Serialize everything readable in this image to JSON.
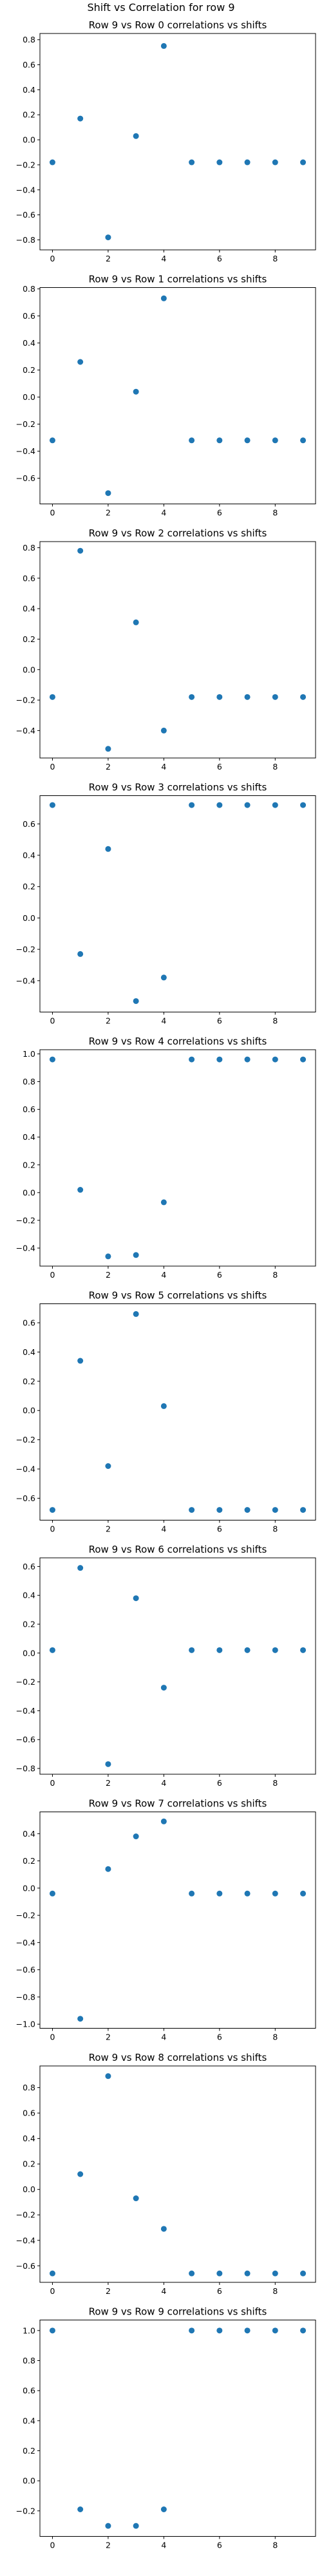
{
  "figure": {
    "suptitle": "Shift vs Correlation for row 9"
  },
  "chart_data": [
    {
      "type": "scatter",
      "title": "Row 9 vs Row 0 correlations vs shifts",
      "x": [
        0,
        1,
        2,
        3,
        4,
        5,
        6,
        7,
        8,
        9
      ],
      "y": [
        -0.18,
        0.17,
        -0.78,
        0.03,
        0.75,
        -0.18,
        -0.18,
        -0.18,
        -0.18,
        -0.18
      ],
      "xlim": [
        -0.45,
        9.45
      ],
      "ylim": [
        -0.88,
        0.85
      ],
      "xticks": [
        0,
        2,
        4,
        6,
        8
      ],
      "xtick_labels": [
        "0",
        "2",
        "4",
        "6",
        "8"
      ],
      "yticks": [
        -0.8,
        -0.6,
        -0.4,
        -0.2,
        0.0,
        0.2,
        0.4,
        0.6,
        0.8
      ],
      "ytick_labels": [
        "−0.8",
        "−0.6",
        "−0.4",
        "−0.2",
        "0.0",
        "0.2",
        "0.4",
        "0.6",
        "0.8"
      ],
      "color": "#1f77b4"
    },
    {
      "type": "scatter",
      "title": "Row 9 vs Row 1 correlations vs shifts",
      "x": [
        0,
        1,
        2,
        3,
        4,
        5,
        6,
        7,
        8,
        9
      ],
      "y": [
        -0.32,
        0.26,
        -0.71,
        0.04,
        0.73,
        -0.32,
        -0.32,
        -0.32,
        -0.32,
        -0.32
      ],
      "xlim": [
        -0.45,
        9.45
      ],
      "ylim": [
        -0.79,
        0.81
      ],
      "xticks": [
        0,
        2,
        4,
        6,
        8
      ],
      "xtick_labels": [
        "0",
        "2",
        "4",
        "6",
        "8"
      ],
      "yticks": [
        -0.6,
        -0.4,
        -0.2,
        0.0,
        0.2,
        0.4,
        0.6,
        0.8
      ],
      "ytick_labels": [
        "−0.6",
        "−0.4",
        "−0.2",
        "0.0",
        "0.2",
        "0.4",
        "0.6",
        "0.8"
      ],
      "color": "#1f77b4"
    },
    {
      "type": "scatter",
      "title": "Row 9 vs Row 2 correlations vs shifts",
      "x": [
        0,
        1,
        2,
        3,
        4,
        5,
        6,
        7,
        8,
        9
      ],
      "y": [
        -0.18,
        0.78,
        -0.52,
        0.31,
        -0.4,
        -0.18,
        -0.18,
        -0.18,
        -0.18,
        -0.18
      ],
      "xlim": [
        -0.45,
        9.45
      ],
      "ylim": [
        -0.58,
        0.84
      ],
      "xticks": [
        0,
        2,
        4,
        6,
        8
      ],
      "xtick_labels": [
        "0",
        "2",
        "4",
        "6",
        "8"
      ],
      "yticks": [
        -0.4,
        -0.2,
        0.0,
        0.2,
        0.4,
        0.6,
        0.8
      ],
      "ytick_labels": [
        "−0.4",
        "−0.2",
        "0.0",
        "0.2",
        "0.4",
        "0.6",
        "0.8"
      ],
      "color": "#1f77b4"
    },
    {
      "type": "scatter",
      "title": "Row 9 vs Row 3 correlations vs shifts",
      "x": [
        0,
        1,
        2,
        3,
        4,
        5,
        6,
        7,
        8,
        9
      ],
      "y": [
        0.72,
        -0.23,
        0.44,
        -0.53,
        -0.38,
        0.72,
        0.72,
        0.72,
        0.72,
        0.72
      ],
      "xlim": [
        -0.45,
        9.45
      ],
      "ylim": [
        -0.6,
        0.78
      ],
      "xticks": [
        0,
        2,
        4,
        6,
        8
      ],
      "xtick_labels": [
        "0",
        "2",
        "4",
        "6",
        "8"
      ],
      "yticks": [
        -0.4,
        -0.2,
        0.0,
        0.2,
        0.4,
        0.6
      ],
      "ytick_labels": [
        "−0.4",
        "−0.2",
        "0.0",
        "0.2",
        "0.4",
        "0.6"
      ],
      "color": "#1f77b4"
    },
    {
      "type": "scatter",
      "title": "Row 9 vs Row 4 correlations vs shifts",
      "x": [
        0,
        1,
        2,
        3,
        4,
        5,
        6,
        7,
        8,
        9
      ],
      "y": [
        0.96,
        0.02,
        -0.46,
        -0.45,
        -0.07,
        0.96,
        0.96,
        0.96,
        0.96,
        0.96
      ],
      "xlim": [
        -0.45,
        9.45
      ],
      "ylim": [
        -0.53,
        1.03
      ],
      "xticks": [
        0,
        2,
        4,
        6,
        8
      ],
      "xtick_labels": [
        "0",
        "2",
        "4",
        "6",
        "8"
      ],
      "yticks": [
        -0.4,
        -0.2,
        0.0,
        0.2,
        0.4,
        0.6,
        0.8,
        1.0
      ],
      "ytick_labels": [
        "−0.4",
        "−0.2",
        "0.0",
        "0.2",
        "0.4",
        "0.6",
        "0.8",
        "1.0"
      ],
      "color": "#1f77b4"
    },
    {
      "type": "scatter",
      "title": "Row 9 vs Row 5 correlations vs shifts",
      "x": [
        0,
        1,
        2,
        3,
        4,
        5,
        6,
        7,
        8,
        9
      ],
      "y": [
        -0.68,
        0.34,
        -0.38,
        0.66,
        0.03,
        -0.68,
        -0.68,
        -0.68,
        -0.68,
        -0.68
      ],
      "xlim": [
        -0.45,
        9.45
      ],
      "ylim": [
        -0.75,
        0.73
      ],
      "xticks": [
        0,
        2,
        4,
        6,
        8
      ],
      "xtick_labels": [
        "0",
        "2",
        "4",
        "6",
        "8"
      ],
      "yticks": [
        -0.6,
        -0.4,
        -0.2,
        0.0,
        0.2,
        0.4,
        0.6
      ],
      "ytick_labels": [
        "−0.6",
        "−0.4",
        "−0.2",
        "0.0",
        "0.2",
        "0.4",
        "0.6"
      ],
      "color": "#1f77b4"
    },
    {
      "type": "scatter",
      "title": "Row 9 vs Row 6 correlations vs shifts",
      "x": [
        0,
        1,
        2,
        3,
        4,
        5,
        6,
        7,
        8,
        9
      ],
      "y": [
        0.02,
        0.59,
        -0.77,
        0.38,
        -0.24,
        0.02,
        0.02,
        0.02,
        0.02,
        0.02
      ],
      "xlim": [
        -0.45,
        9.45
      ],
      "ylim": [
        -0.84,
        0.66
      ],
      "xticks": [
        0,
        2,
        4,
        6,
        8
      ],
      "xtick_labels": [
        "0",
        "2",
        "4",
        "6",
        "8"
      ],
      "yticks": [
        -0.8,
        -0.6,
        -0.4,
        -0.2,
        0.0,
        0.2,
        0.4,
        0.6
      ],
      "ytick_labels": [
        "−0.8",
        "−0.6",
        "−0.4",
        "−0.2",
        "0.0",
        "0.2",
        "0.4",
        "0.6"
      ],
      "color": "#1f77b4"
    },
    {
      "type": "scatter",
      "title": "Row 9 vs Row 7 correlations vs shifts",
      "x": [
        0,
        1,
        2,
        3,
        4,
        5,
        6,
        7,
        8,
        9
      ],
      "y": [
        -0.04,
        -0.96,
        0.14,
        0.38,
        0.49,
        -0.04,
        -0.04,
        -0.04,
        -0.04,
        -0.04
      ],
      "xlim": [
        -0.45,
        9.45
      ],
      "ylim": [
        -1.03,
        0.56
      ],
      "xticks": [
        0,
        2,
        4,
        6,
        8
      ],
      "xtick_labels": [
        "0",
        "2",
        "4",
        "6",
        "8"
      ],
      "yticks": [
        -1.0,
        -0.8,
        -0.6,
        -0.4,
        -0.2,
        0.0,
        0.2,
        0.4
      ],
      "ytick_labels": [
        "−1.0",
        "−0.8",
        "−0.6",
        "−0.4",
        "−0.2",
        "0.0",
        "0.2",
        "0.4"
      ],
      "color": "#1f77b4"
    },
    {
      "type": "scatter",
      "title": "Row 9 vs Row 8 correlations vs shifts",
      "x": [
        0,
        1,
        2,
        3,
        4,
        5,
        6,
        7,
        8,
        9
      ],
      "y": [
        -0.66,
        0.12,
        0.89,
        -0.07,
        -0.31,
        -0.66,
        -0.66,
        -0.66,
        -0.66,
        -0.66
      ],
      "xlim": [
        -0.45,
        9.45
      ],
      "ylim": [
        -0.73,
        0.97
      ],
      "xticks": [
        0,
        2,
        4,
        6,
        8
      ],
      "xtick_labels": [
        "0",
        "2",
        "4",
        "6",
        "8"
      ],
      "yticks": [
        -0.6,
        -0.4,
        -0.2,
        0.0,
        0.2,
        0.4,
        0.6,
        0.8
      ],
      "ytick_labels": [
        "−0.6",
        "−0.4",
        "−0.2",
        "0.0",
        "0.2",
        "0.4",
        "0.6",
        "0.8"
      ],
      "color": "#1f77b4"
    },
    {
      "type": "scatter",
      "title": "Row 9 vs Row 9 correlations vs shifts",
      "x": [
        0,
        1,
        2,
        3,
        4,
        5,
        6,
        7,
        8,
        9
      ],
      "y": [
        1.0,
        -0.19,
        -0.3,
        -0.3,
        -0.19,
        1.0,
        1.0,
        1.0,
        1.0,
        1.0
      ],
      "xlim": [
        -0.45,
        9.45
      ],
      "ylim": [
        -0.37,
        1.07
      ],
      "xticks": [
        0,
        2,
        4,
        6,
        8
      ],
      "xtick_labels": [
        "0",
        "2",
        "4",
        "6",
        "8"
      ],
      "yticks": [
        -0.2,
        0.0,
        0.2,
        0.4,
        0.6,
        0.8,
        1.0
      ],
      "ytick_labels": [
        "−0.2",
        "0.0",
        "0.2",
        "0.4",
        "0.6",
        "0.8",
        "1.0"
      ],
      "color": "#1f77b4"
    }
  ]
}
